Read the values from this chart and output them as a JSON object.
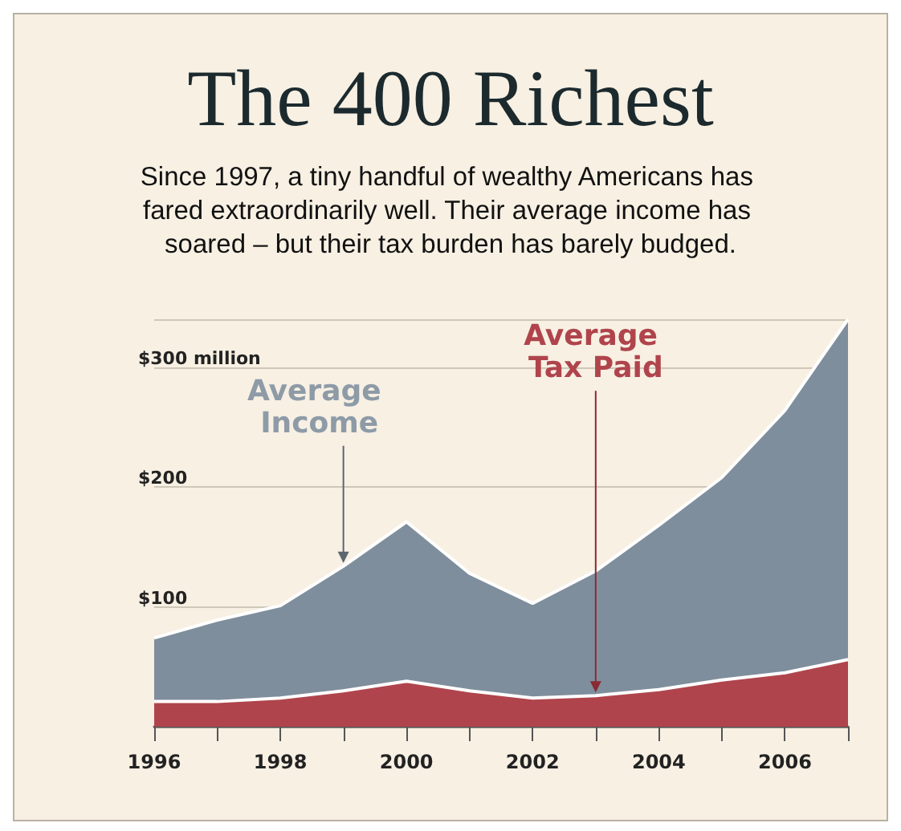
{
  "chart_data": {
    "type": "area",
    "title": "The 400 Richest",
    "subtitle": "Since 1997, a tiny handful of wealthy Americans has fared extraordinarily well. Their average income has soared – but their tax burden has barely budged.",
    "x": [
      1996,
      1997,
      1998,
      1999,
      2000,
      2001,
      2002,
      2003,
      2004,
      2005,
      2006,
      2007
    ],
    "series": [
      {
        "name": "Average Income",
        "color": "#7f8e9c",
        "values": [
          74,
          89,
          101,
          134,
          171,
          128,
          103,
          130,
          168,
          208,
          264,
          340
        ]
      },
      {
        "name": "Average Tax Paid",
        "color": "#b0444c",
        "values": [
          21,
          21,
          24,
          30,
          38,
          30,
          24,
          26,
          31,
          39,
          45,
          56
        ]
      }
    ],
    "xlim": [
      1996,
      2007
    ],
    "xticks": [
      1996,
      {
        "value": 1997,
        "label": null
      },
      1998,
      {
        "value": 1999,
        "label": null
      },
      2000,
      {
        "value": 2001,
        "label": null
      },
      2002,
      {
        "value": 2003,
        "label": null
      },
      2004,
      {
        "value": 2005,
        "label": null
      },
      2006,
      {
        "value": 2007,
        "label": null
      }
    ],
    "ylim": [
      0,
      340
    ],
    "yticks": [
      {
        "value": 100,
        "label": "$100"
      },
      {
        "value": 200,
        "label": "$200"
      },
      {
        "value": 300,
        "label": "$300 million"
      }
    ],
    "grid": "y",
    "legend": false,
    "marker": "none",
    "line_style": "solid"
  }
}
